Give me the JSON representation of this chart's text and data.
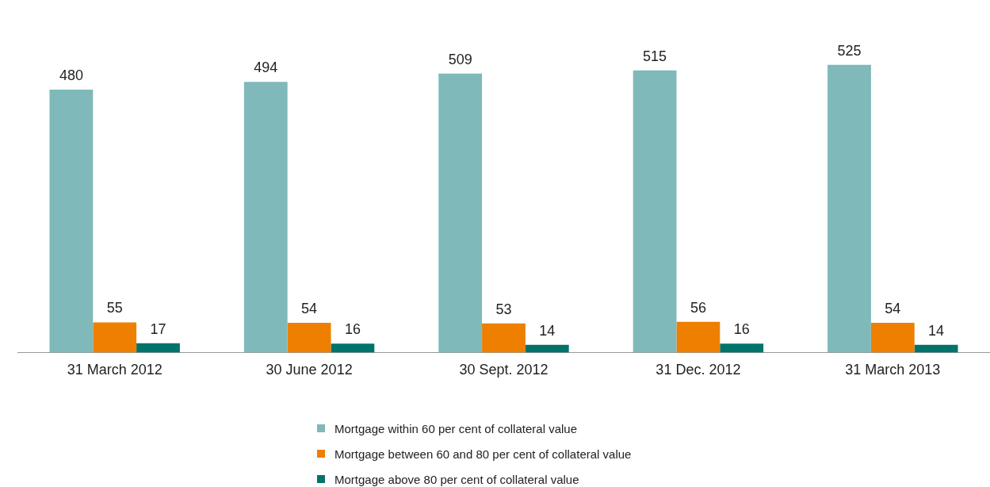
{
  "chart_data": {
    "type": "bar",
    "categories": [
      "31 March 2012",
      "30 June 2012",
      "30 Sept. 2012",
      "31 Dec. 2012",
      "31 March 2013"
    ],
    "series": [
      {
        "name": "Mortgage within 60 per cent of collateral value",
        "color": "#7fb9b9",
        "values": [
          480,
          494,
          509,
          515,
          525
        ]
      },
      {
        "name": "Mortgage between 60 and 80 per cent of collateral value",
        "color": "#ee7f00",
        "values": [
          55,
          54,
          53,
          56,
          54
        ]
      },
      {
        "name": "Mortgage above 80 per cent of collateral value",
        "color": "#00736a",
        "values": [
          17,
          16,
          14,
          16,
          14
        ]
      }
    ],
    "data_labels": true,
    "legend": "bottom",
    "grid": false
  }
}
